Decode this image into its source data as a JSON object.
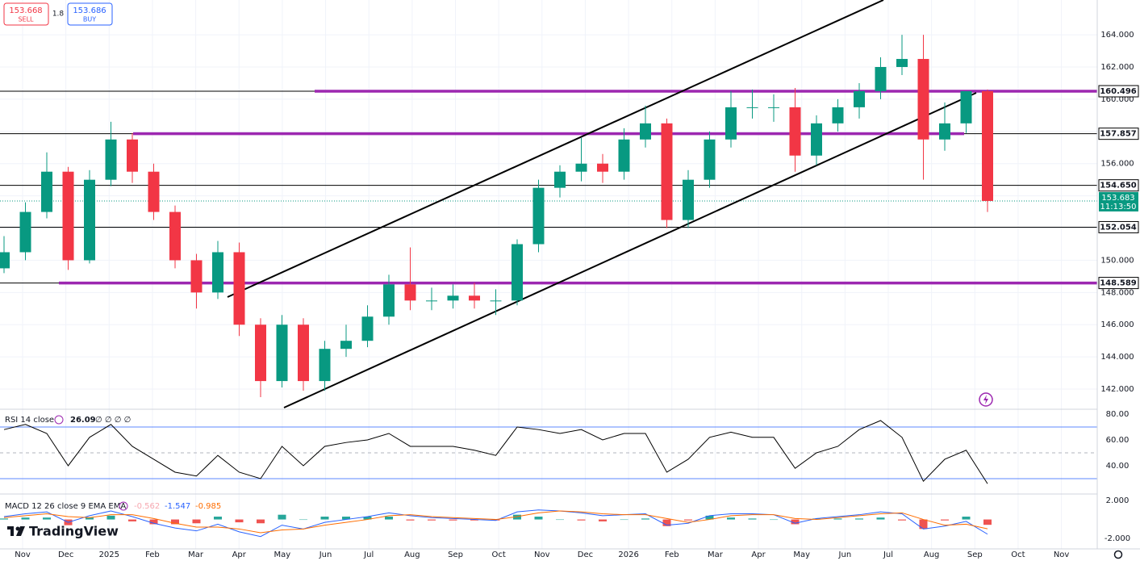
{
  "trade_panel": {
    "sell_price": "153.668",
    "sell_label": "SELL",
    "spread": "1.8",
    "buy_price": "153.686",
    "buy_label": "BUY"
  },
  "logo": "TradingView",
  "chart_data": [
    {
      "type": "candlestick",
      "open": [
        149.5,
        150.5,
        153,
        155.5,
        150,
        155,
        157.5,
        155.5,
        153,
        150,
        148,
        150.5,
        146,
        142.5,
        146,
        142.5,
        144.5,
        145,
        146.5,
        148.5,
        147.5,
        147.5,
        147.8,
        147.5,
        147.5,
        151,
        154.5,
        155.5,
        156,
        155.5,
        157.5,
        158.5,
        152.5,
        155,
        157.5,
        159.5,
        159.5,
        159.5,
        156.5,
        158.5,
        159.5,
        160.5,
        162,
        162.5,
        157.5,
        158.5,
        160.5
      ],
      "high": [
        151.5,
        153.6,
        156.7,
        155.8,
        155.6,
        158.6,
        157.9,
        156,
        153.4,
        150.4,
        151.2,
        151.1,
        146.4,
        146.6,
        146.4,
        145,
        146,
        147.2,
        149.1,
        150.8,
        148.3,
        148.5,
        148.6,
        148.2,
        151.3,
        155,
        155.9,
        157.6,
        156.6,
        158.2,
        159.6,
        158.8,
        155.6,
        158,
        160.5,
        160.6,
        160.3,
        160.7,
        159,
        160,
        161,
        162.6,
        164,
        164,
        159.8,
        160.3,
        160.6
      ],
      "low": [
        149.2,
        150,
        152.6,
        149.4,
        149.8,
        154.6,
        154.8,
        152.5,
        149.5,
        147,
        147.6,
        145.3,
        141.5,
        142.1,
        141.9,
        141.9,
        144,
        144.6,
        146,
        146.9,
        146.9,
        147,
        147,
        146.6,
        147.2,
        150.5,
        153.9,
        154.9,
        154.8,
        155,
        157,
        152,
        152,
        154.5,
        157,
        158.8,
        158.6,
        155.5,
        155.9,
        158,
        158.8,
        160,
        161.5,
        155,
        156.8,
        157.9,
        153
      ],
      "close": [
        150.5,
        153,
        155.5,
        150,
        155,
        157.5,
        155.5,
        153,
        150,
        148,
        150.5,
        146,
        142.5,
        146,
        142.5,
        144.5,
        145,
        146.5,
        148.5,
        147.5,
        147.5,
        147.8,
        147.5,
        147.5,
        151,
        154.5,
        155.5,
        156,
        155.5,
        157.5,
        158.5,
        152.5,
        155,
        157.5,
        159.5,
        159.5,
        159.5,
        156.5,
        158.5,
        159.5,
        160.5,
        162,
        162.5,
        157.5,
        158.5,
        160.5,
        153.683
      ],
      "up_color": "#089981",
      "down_color": "#f23645",
      "ylim": [
        140.8,
        166.16
      ],
      "yticks": [
        {
          "value": 164,
          "label": "164.000"
        },
        {
          "value": 162,
          "label": "162.000"
        },
        {
          "value": 160,
          "label": "160.000"
        },
        {
          "value": 158,
          "label": "158.000"
        },
        {
          "value": 156,
          "label": "156.000"
        },
        {
          "value": 154,
          "label": "154.000"
        },
        {
          "value": 152,
          "label": "152.000"
        },
        {
          "value": 150,
          "label": "150.000"
        },
        {
          "value": 148,
          "label": "148.000"
        },
        {
          "value": 146,
          "label": "146.000"
        },
        {
          "value": 144,
          "label": "144.000"
        },
        {
          "value": 142,
          "label": "142.000"
        }
      ],
      "x_labels": [
        "Nov",
        "Dec",
        "2025",
        "Feb",
        "Mar",
        "Apr",
        "May",
        "Jun",
        "Jul",
        "Aug",
        "Sep",
        "Oct",
        "Nov",
        "Dec",
        "2026",
        "Feb",
        "Mar",
        "Apr",
        "May",
        "Jun",
        "Jul",
        "Aug",
        "Sep",
        "Oct",
        "Nov"
      ],
      "levels": [
        {
          "value": 160.496,
          "label": "160.496",
          "highlight": true
        },
        {
          "value": 157.857,
          "label": "157.857",
          "highlight": true
        },
        {
          "value": 154.65,
          "label": "154.650",
          "highlight": false
        },
        {
          "value": 152.054,
          "label": "152.054",
          "highlight": false
        },
        {
          "value": 148.589,
          "label": "148.589",
          "highlight": true
        }
      ],
      "level_color": "#000000",
      "highlight_color": "#9c27b0",
      "countdown": "11:13:50",
      "grid": true
    },
    {
      "type": "line",
      "title": "RSI 14 close",
      "extra": "∅ ∅ ∅ ∅",
      "values": [
        68,
        72,
        65,
        40,
        62,
        72,
        55,
        45,
        35,
        32,
        48,
        35,
        30,
        55,
        40,
        55,
        58,
        60,
        65,
        55,
        55,
        55,
        52,
        48,
        70,
        68,
        65,
        68,
        60,
        65,
        65,
        35,
        45,
        62,
        66,
        62,
        62,
        38,
        50,
        55,
        68,
        75,
        62,
        28,
        45,
        52,
        26.09
      ],
      "color": "#000000",
      "band_color": "#2962ff",
      "bands": [
        70,
        30
      ],
      "ylim": [
        18.1,
        83.75
      ],
      "yticks": [
        {
          "value": 80,
          "label": "80.00"
        },
        {
          "value": 60,
          "label": "60.00"
        },
        {
          "value": 40,
          "label": "40.00"
        }
      ]
    },
    {
      "type": "macd",
      "title": "MACD 12 26 close 9 EMA EMA",
      "histogram": [
        0.1,
        0.2,
        0.2,
        -0.6,
        0.2,
        0.4,
        -0.2,
        -0.5,
        -0.5,
        -0.4,
        0.3,
        -0.3,
        -0.4,
        0.5,
        0,
        0.3,
        0.3,
        0.3,
        0.3,
        -0.1,
        -0.1,
        -0.1,
        -0.1,
        -0.1,
        0.5,
        0.3,
        0,
        -0.1,
        -0.2,
        0,
        0.1,
        -0.7,
        -0.1,
        0.4,
        0.2,
        0.1,
        0,
        -0.5,
        0.1,
        0.1,
        0.1,
        0.2,
        -0.1,
        -1.0,
        -0.1,
        0.3,
        -0.562
      ],
      "macd": [
        0.3,
        0.6,
        0.8,
        -0.3,
        0.4,
        0.9,
        0.3,
        -0.4,
        -0.9,
        -1.2,
        -0.5,
        -1.3,
        -1.8,
        -0.6,
        -1.0,
        -0.3,
        0,
        0.3,
        0.7,
        0.4,
        0.2,
        0.1,
        0,
        -0.1,
        0.8,
        1.0,
        0.9,
        0.7,
        0.4,
        0.5,
        0.6,
        -0.6,
        -0.4,
        0.4,
        0.6,
        0.6,
        0.5,
        -0.4,
        0.1,
        0.3,
        0.5,
        0.8,
        0.6,
        -1.0,
        -0.7,
        -0.2,
        -1.547
      ],
      "signal": [
        0.2,
        0.4,
        0.6,
        0.3,
        0.2,
        0.5,
        0.5,
        0.1,
        -0.4,
        -0.8,
        -0.8,
        -1.0,
        -1.4,
        -1.1,
        -1.0,
        -0.6,
        -0.3,
        0,
        0.4,
        0.5,
        0.3,
        0.2,
        0.1,
        0,
        0.3,
        0.7,
        0.9,
        0.8,
        0.6,
        0.5,
        0.5,
        0.1,
        -0.3,
        0,
        0.4,
        0.5,
        0.5,
        0.1,
        0,
        0.2,
        0.4,
        0.6,
        0.7,
        0,
        -0.6,
        -0.5,
        -0.985
      ],
      "histogram_color": "#f7a8b0",
      "macd_color": "#2962ff",
      "signal_color": "#ff6d00",
      "hist_up_color": "#26a69a",
      "hist_down_color": "#ef5350",
      "ylim": [
        -3.1,
        2.6
      ],
      "yticks": [
        {
          "value": 2,
          "label": "2.000"
        },
        {
          "value": -2,
          "label": "-2.000"
        }
      ]
    }
  ]
}
